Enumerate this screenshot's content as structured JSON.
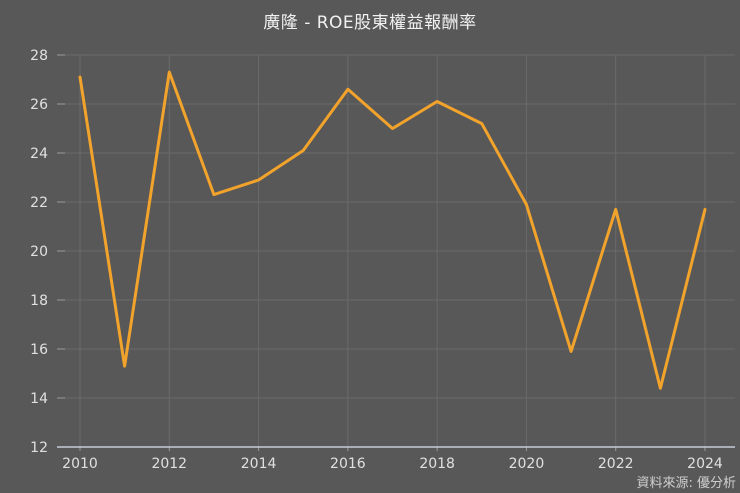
{
  "title": "廣隆 - ROE股東權益報酬率",
  "source": "資料來源: 優分析",
  "colors": {
    "background": "#585858",
    "line": "#F2A32B",
    "grid": "#6A6A6A",
    "axis_line": "#C6CAD5",
    "tick": "#9A9A9A",
    "title_text": "#F1F1F1",
    "label_text": "#E0E0E0",
    "source_text": "#CFCFCF"
  },
  "chart_data": {
    "type": "line",
    "title": "廣隆 - ROE股東權益報酬率",
    "source": "資料來源: 優分析",
    "x": [
      2010,
      2011,
      2012,
      2013,
      2014,
      2015,
      2016,
      2017,
      2018,
      2019,
      2020,
      2021,
      2022,
      2023,
      2024
    ],
    "series": [
      {
        "name": "ROE",
        "values": [
          27.1,
          15.3,
          27.3,
          22.3,
          22.9,
          24.1,
          26.6,
          25.0,
          26.1,
          25.2,
          21.9,
          15.9,
          21.7,
          14.4,
          21.7
        ]
      }
    ],
    "xlabel": "",
    "ylabel": "",
    "ylim": [
      12,
      28
    ],
    "ytick_step": 2,
    "yticks": [
      12,
      14,
      16,
      18,
      20,
      22,
      24,
      26,
      28
    ],
    "xticks": [
      2010,
      2012,
      2014,
      2016,
      2018,
      2020,
      2022,
      2024
    ],
    "grid": true,
    "legend_position": "none"
  }
}
